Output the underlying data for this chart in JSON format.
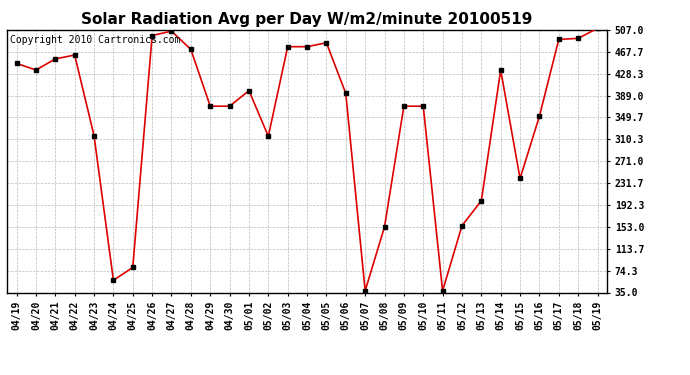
{
  "title": "Solar Radiation Avg per Day W/m2/minute 20100519",
  "copyright": "Copyright 2010 Cartronics.com",
  "x_labels": [
    "04/19",
    "04/20",
    "04/21",
    "04/22",
    "04/23",
    "04/24",
    "04/25",
    "04/26",
    "04/27",
    "04/28",
    "04/29",
    "04/30",
    "05/01",
    "05/02",
    "05/03",
    "05/04",
    "05/05",
    "05/06",
    "05/07",
    "05/08",
    "05/09",
    "05/10",
    "05/11",
    "05/12",
    "05/13",
    "05/14",
    "05/15",
    "05/16",
    "05/17",
    "05/18",
    "05/19"
  ],
  "y_values": [
    447,
    435,
    455,
    462,
    317,
    57,
    80,
    497,
    505,
    472,
    370,
    370,
    398,
    316,
    477,
    477,
    484,
    393,
    38,
    153,
    370,
    370,
    38,
    155,
    200,
    435,
    240,
    352,
    490,
    492,
    510
  ],
  "y_ticks": [
    35.0,
    74.3,
    113.7,
    153.0,
    192.3,
    231.7,
    271.0,
    310.3,
    349.7,
    389.0,
    428.3,
    467.7,
    507.0
  ],
  "ylim": [
    35.0,
    507.0
  ],
  "line_color": "#dd0000",
  "marker": "s",
  "marker_color": "#000000",
  "marker_size": 3,
  "bg_color": "#ffffff",
  "grid_color": "#bbbbbb",
  "title_fontsize": 11,
  "tick_fontsize": 7,
  "copyright_fontsize": 7
}
